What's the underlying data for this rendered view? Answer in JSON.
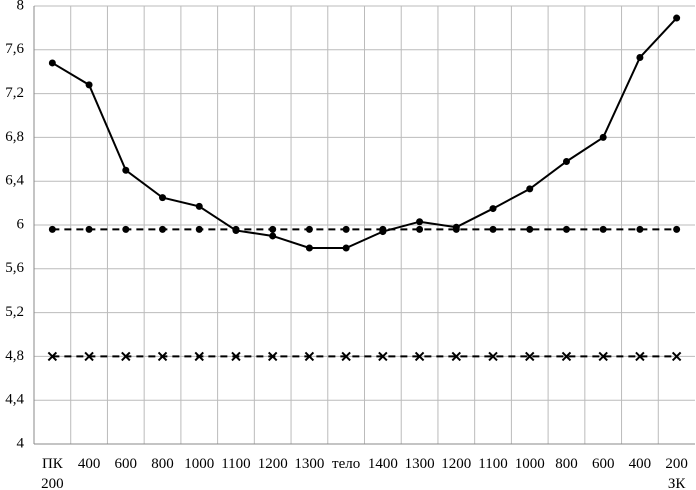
{
  "chart_data": {
    "type": "line",
    "categories": [
      "ПК\n200",
      "400",
      "600",
      "800",
      "1000",
      "1100",
      "1200",
      "1300",
      "тело",
      "1400",
      "1300",
      "1200",
      "1100",
      "1000",
      "800",
      "600",
      "400",
      "200\nЗК"
    ],
    "series": [
      {
        "color": "#000000",
        "dash": "solid",
        "marker": "dot",
        "values": [
          7.48,
          7.28,
          6.5,
          6.25,
          6.17,
          5.95,
          5.9,
          5.79,
          5.79,
          5.94,
          6.03,
          5.98,
          6.15,
          6.33,
          6.58,
          6.8,
          7.53,
          7.89
        ]
      },
      {
        "color": "#000000",
        "dash": "dashed",
        "marker": "dot",
        "values": [
          5.96,
          5.96,
          5.96,
          5.96,
          5.96,
          5.96,
          5.96,
          5.96,
          5.96,
          5.96,
          5.96,
          5.96,
          5.96,
          5.96,
          5.96,
          5.96,
          5.96,
          5.96
        ]
      },
      {
        "color": "#000000",
        "dash": "dashed",
        "marker": "cross",
        "values": [
          4.8,
          4.8,
          4.8,
          4.8,
          4.8,
          4.8,
          4.8,
          4.8,
          4.8,
          4.8,
          4.8,
          4.8,
          4.8,
          4.8,
          4.8,
          4.8,
          4.8,
          4.8
        ]
      }
    ],
    "ylim": [
      4,
      8
    ],
    "yticks": [
      4,
      {
        "value": 4.4,
        "label": "4,4"
      },
      {
        "value": 4.8,
        "label": "4,8"
      },
      {
        "value": 5.2,
        "label": "5,2"
      },
      {
        "value": 5.6,
        "label": "5,6"
      },
      6,
      {
        "value": 6.4,
        "label": "6,4"
      },
      {
        "value": 6.8,
        "label": "6,8"
      },
      {
        "value": 7.2,
        "label": "7,2"
      },
      {
        "value": 7.6,
        "label": "7,6"
      },
      8
    ],
    "grid": true
  }
}
